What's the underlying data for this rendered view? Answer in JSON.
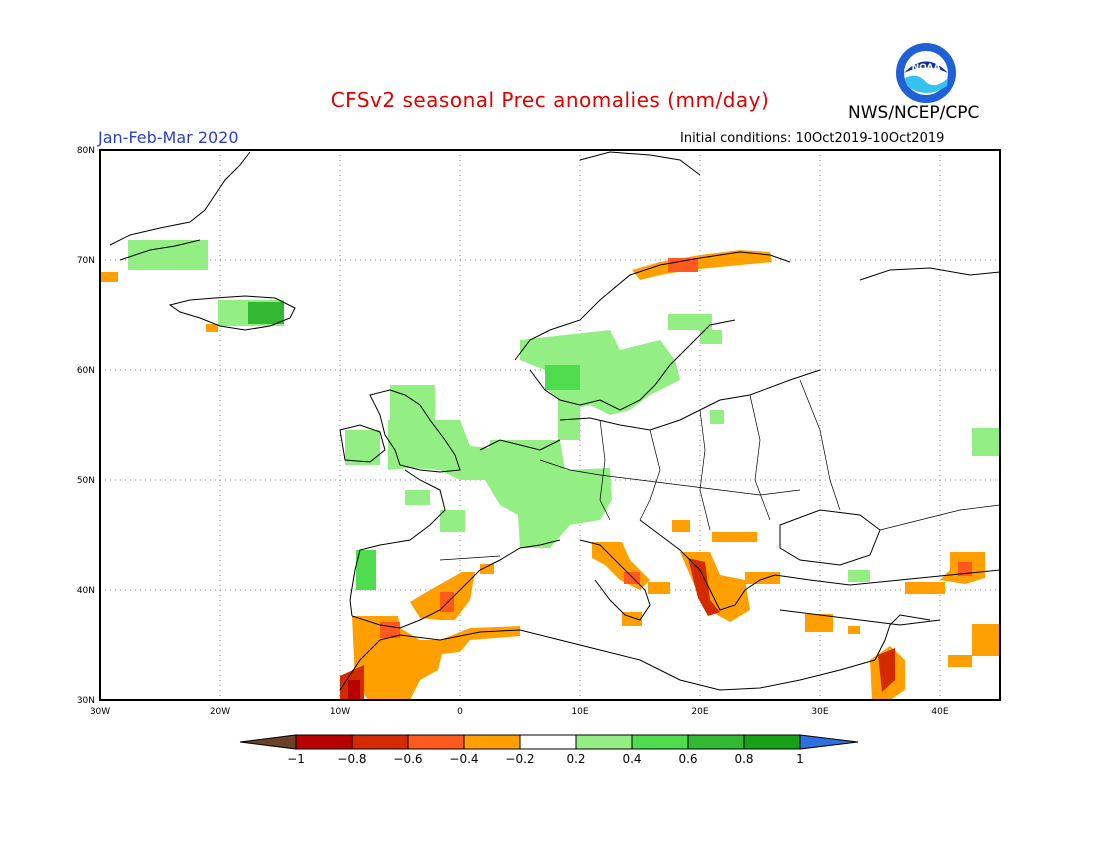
{
  "header": {
    "title": "CFSv2 seasonal Prec anomalies (mm/day)",
    "period": "Jan-Feb-Mar 2020",
    "initial_conditions": "Initial conditions: 10Oct2019-10Oct2019",
    "agency": "NWS/NCEP/CPC",
    "logo_text": "NOAA"
  },
  "axes": {
    "lat_labels": [
      "80N",
      "70N",
      "60N",
      "50N",
      "40N",
      "30N"
    ],
    "lon_labels": [
      "30W",
      "20W",
      "10W",
      "0",
      "10E",
      "20E",
      "30E",
      "40E"
    ],
    "lon_range": [
      -30,
      45
    ],
    "lat_range": [
      30,
      80
    ]
  },
  "colorbar": {
    "labels": [
      "-1",
      "-0.8",
      "-0.6",
      "-0.4",
      "-0.2",
      "0.2",
      "0.4",
      "0.6",
      "0.8",
      "1"
    ],
    "colors": [
      "#6b4226",
      "#b80000",
      "#d42a00",
      "#ff5a1e",
      "#ffa000",
      "#ffffff",
      "#93ee83",
      "#4fdd4f",
      "#33b833",
      "#18a018",
      "#2c6fdf"
    ]
  },
  "colors": {
    "neg_light": "#ffa000",
    "neg_mid": "#ff5a1e",
    "neg_strong": "#d42a00",
    "pos_light": "#93ee83",
    "pos_mid": "#4fdd4f",
    "pos_strong": "#33b833",
    "title": "#e00000",
    "period": "#2a3fcc"
  }
}
